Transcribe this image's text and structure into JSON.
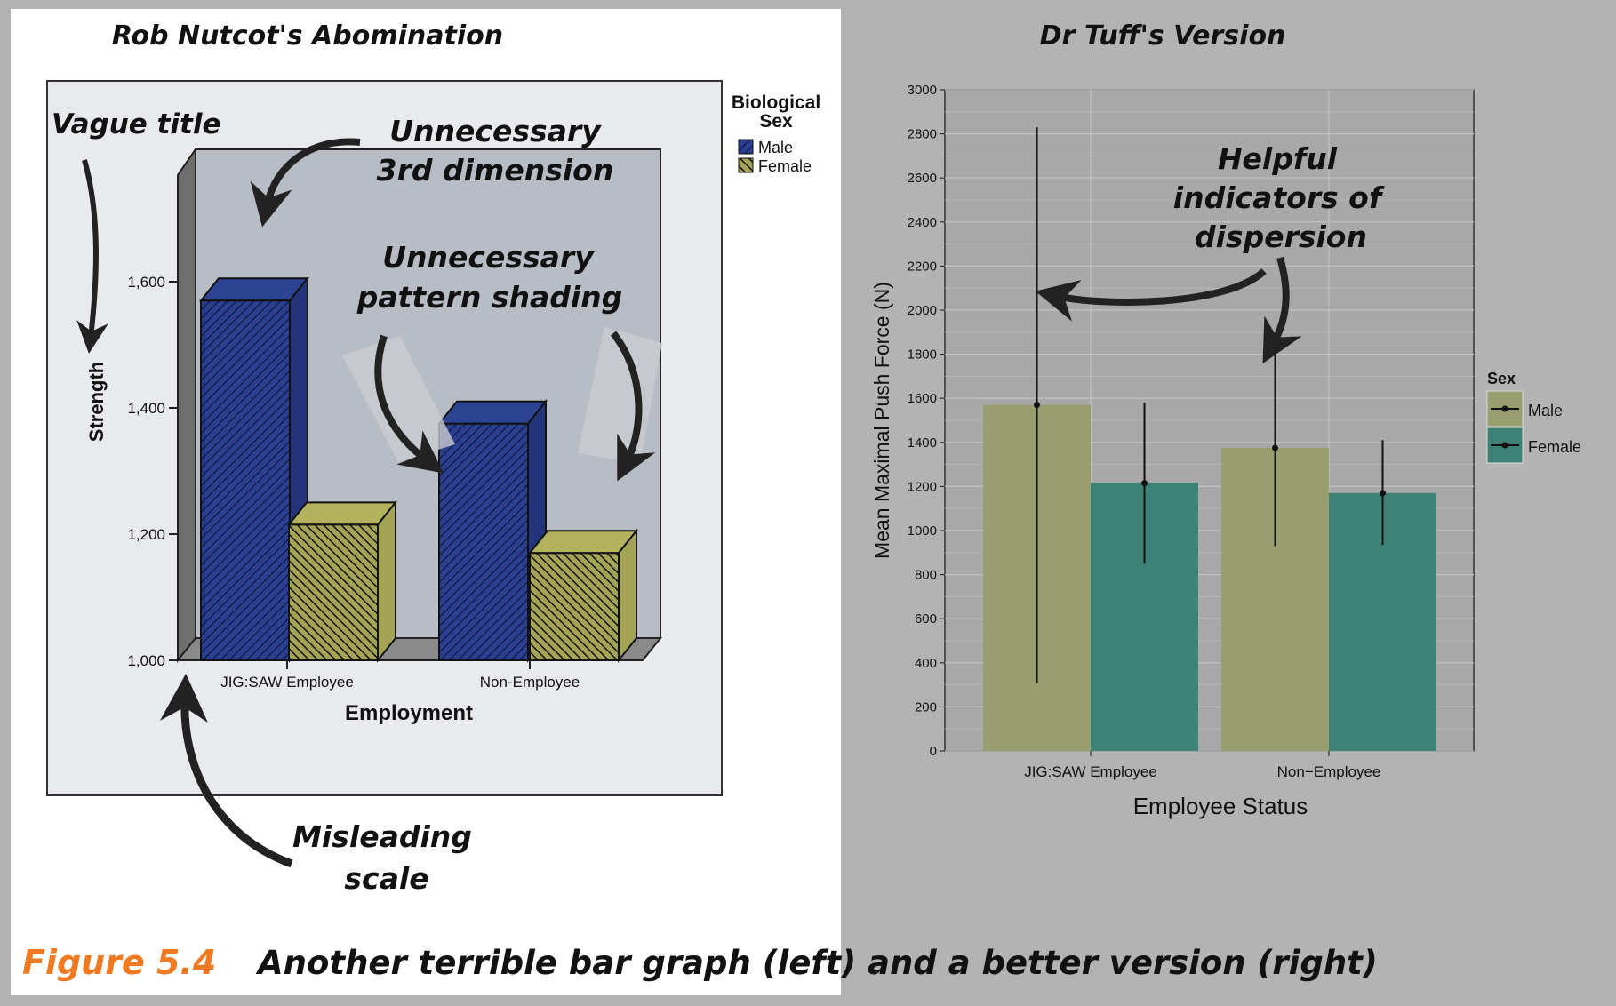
{
  "colors": {
    "page_bg": "#b3b3b3",
    "left_panel_bg": "#ffffff",
    "spss_frame_bg": "#e8eaee",
    "spss_wall": "#b8bcc4",
    "male_blue": "#2a3f8f",
    "female_olive": "#a4a456",
    "ggplot_male": "#989e6d",
    "ggplot_female": "#3e8276",
    "caption_orange": "#f07a22"
  },
  "left_panel": {
    "title": "Rob Nutcot's Abomination",
    "annotations": {
      "vague_title": "Vague title",
      "third_dimension": [
        "Unnecessary",
        "3rd dimension"
      ],
      "pattern_shading": [
        "Unnecessary",
        "pattern shading"
      ],
      "misleading_scale": [
        "Misleading",
        "scale"
      ]
    },
    "legend_title": [
      "Biological",
      "Sex"
    ]
  },
  "right_panel": {
    "title": "Dr Tuff's Version",
    "annotation": [
      "Helpful",
      "indicators of",
      "dispersion"
    ]
  },
  "chart_data": [
    {
      "type": "bar",
      "title": "",
      "style": "3d-pattern-shaded",
      "xlabel": "Employment",
      "ylabel": "Strength",
      "categories": [
        "JIG:SAW Employee",
        "Non-Employee"
      ],
      "ylim": [
        1000,
        1700
      ],
      "yticks": [
        1000,
        1200,
        1400,
        1600
      ],
      "ytick_labels": [
        "1,000",
        "1,200",
        "1,400",
        "1,600"
      ],
      "series": [
        {
          "name": "Male",
          "values": [
            1570,
            1375
          ]
        },
        {
          "name": "Female",
          "values": [
            1215,
            1170
          ]
        }
      ],
      "legend": {
        "title": "Biological Sex",
        "placement": "right"
      }
    },
    {
      "type": "bar",
      "title": "",
      "xlabel": "Employee Status",
      "ylabel": "Mean Maximal Push Force (N)",
      "categories": [
        "JIG:SAW Employee",
        "Non−Employee"
      ],
      "ylim": [
        0,
        3000
      ],
      "yticks": [
        0,
        200,
        400,
        600,
        800,
        1000,
        1200,
        1400,
        1600,
        1800,
        2000,
        2200,
        2400,
        2600,
        2800,
        3000
      ],
      "grid": true,
      "series": [
        {
          "name": "Male",
          "values": [
            1570,
            1375
          ],
          "error_low": [
            310,
            930
          ],
          "error_high": [
            2830,
            1825
          ]
        },
        {
          "name": "Female",
          "values": [
            1215,
            1170
          ],
          "error_low": [
            850,
            935
          ],
          "error_high": [
            1580,
            1410
          ]
        }
      ],
      "legend": {
        "title": "Sex",
        "placement": "right"
      }
    }
  ],
  "caption": {
    "label": "Figure 5.4",
    "text": "Another terrible bar graph (left) and a better version (right)"
  }
}
